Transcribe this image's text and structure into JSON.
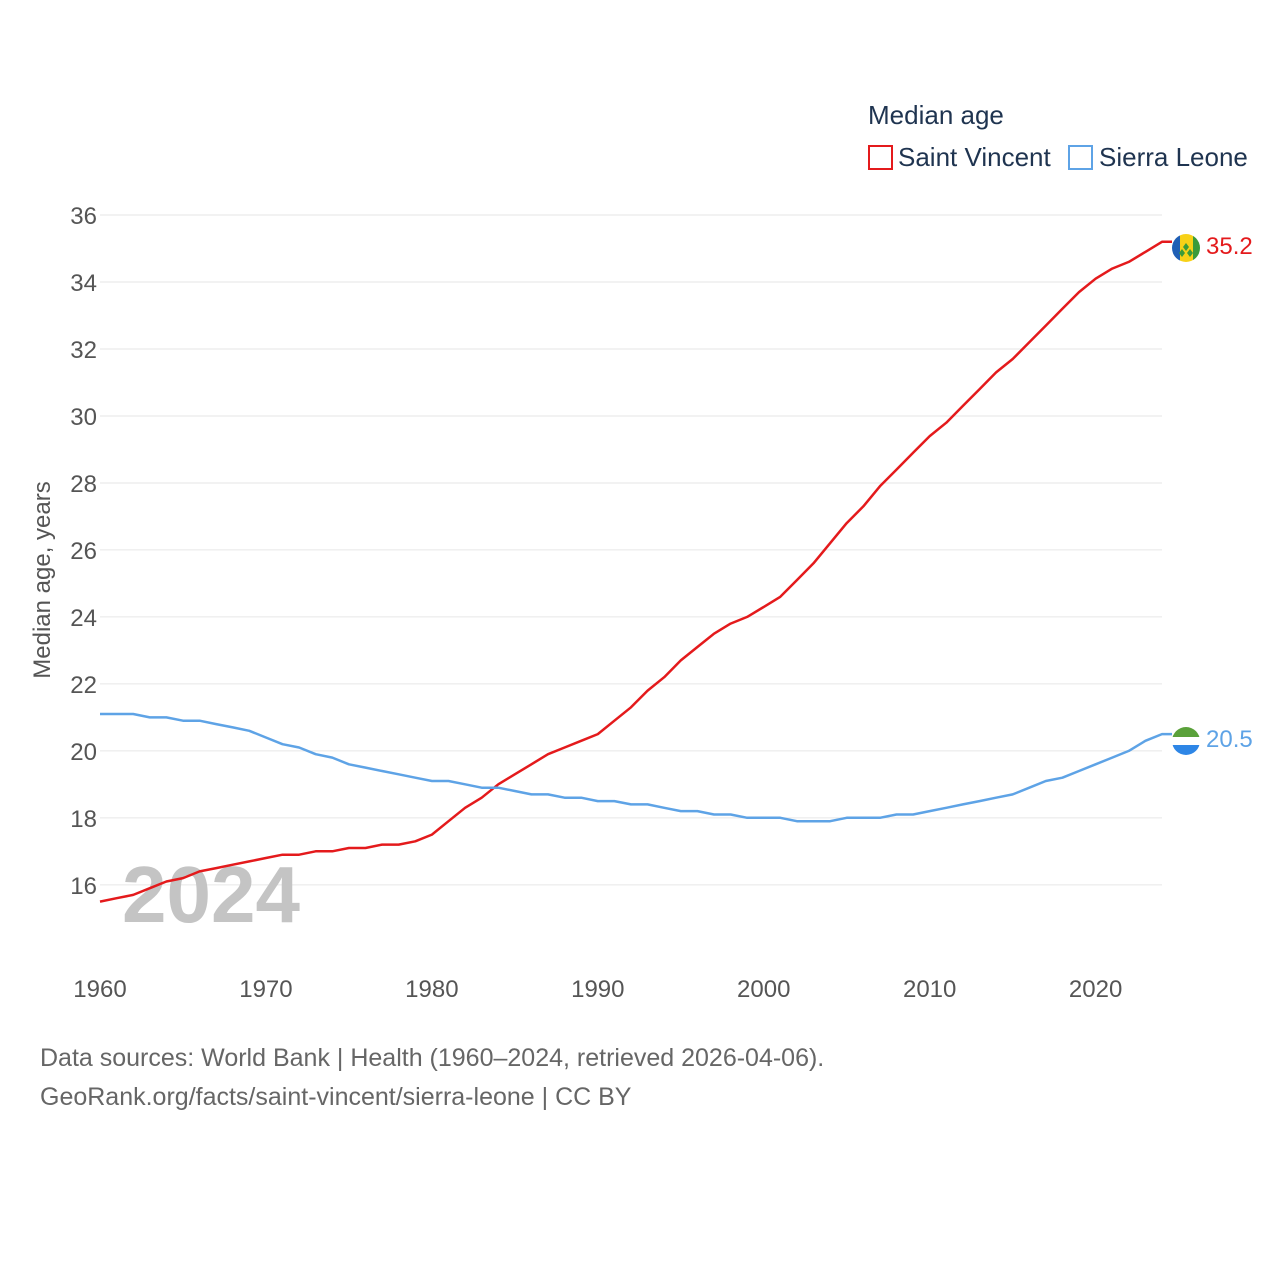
{
  "chart_data": {
    "type": "line",
    "legend_title": "Median age",
    "legend_position": "top-right",
    "ylabel": "Median age, years",
    "xlabel": "",
    "ylim": [
      14.8,
      36.3
    ],
    "xlim": [
      1960,
      2024
    ],
    "yticks": [
      16,
      18,
      20,
      22,
      24,
      26,
      28,
      30,
      32,
      34,
      36
    ],
    "xticks": [
      1960,
      1970,
      1980,
      1990,
      2000,
      2010,
      2020
    ],
    "year_label": "2024",
    "grid": true,
    "series": [
      {
        "name": "Saint Vincent",
        "color": "#e41a1c",
        "end_label": "35.2",
        "flag_icon": "saint-vincent-flag-icon",
        "x": [
          1960,
          1961,
          1962,
          1963,
          1964,
          1965,
          1966,
          1967,
          1968,
          1969,
          1970,
          1971,
          1972,
          1973,
          1974,
          1975,
          1976,
          1977,
          1978,
          1979,
          1980,
          1981,
          1982,
          1983,
          1984,
          1985,
          1986,
          1987,
          1988,
          1989,
          1990,
          1991,
          1992,
          1993,
          1994,
          1995,
          1996,
          1997,
          1998,
          1999,
          2000,
          2001,
          2002,
          2003,
          2004,
          2005,
          2006,
          2007,
          2008,
          2009,
          2010,
          2011,
          2012,
          2013,
          2014,
          2015,
          2016,
          2017,
          2018,
          2019,
          2020,
          2021,
          2022,
          2023,
          2024
        ],
        "values": [
          15.5,
          15.6,
          15.7,
          15.9,
          16.1,
          16.2,
          16.4,
          16.5,
          16.6,
          16.7,
          16.8,
          16.9,
          16.9,
          17.0,
          17.0,
          17.1,
          17.1,
          17.2,
          17.2,
          17.3,
          17.5,
          17.9,
          18.3,
          18.6,
          19.0,
          19.3,
          19.6,
          19.9,
          20.1,
          20.3,
          20.5,
          20.9,
          21.3,
          21.8,
          22.2,
          22.7,
          23.1,
          23.5,
          23.8,
          24.0,
          24.3,
          24.6,
          25.1,
          25.6,
          26.2,
          26.8,
          27.3,
          27.9,
          28.4,
          28.9,
          29.4,
          29.8,
          30.3,
          30.8,
          31.3,
          31.7,
          32.2,
          32.7,
          33.2,
          33.7,
          34.1,
          34.4,
          34.6,
          34.9,
          35.2
        ]
      },
      {
        "name": "Sierra Leone",
        "color": "#5ea3e6",
        "end_label": "20.5",
        "flag_icon": "sierra-leone-flag-icon",
        "x": [
          1960,
          1961,
          1962,
          1963,
          1964,
          1965,
          1966,
          1967,
          1968,
          1969,
          1970,
          1971,
          1972,
          1973,
          1974,
          1975,
          1976,
          1977,
          1978,
          1979,
          1980,
          1981,
          1982,
          1983,
          1984,
          1985,
          1986,
          1987,
          1988,
          1989,
          1990,
          1991,
          1992,
          1993,
          1994,
          1995,
          1996,
          1997,
          1998,
          1999,
          2000,
          2001,
          2002,
          2003,
          2004,
          2005,
          2006,
          2007,
          2008,
          2009,
          2010,
          2011,
          2012,
          2013,
          2014,
          2015,
          2016,
          2017,
          2018,
          2019,
          2020,
          2021,
          2022,
          2023,
          2024
        ],
        "values": [
          21.1,
          21.1,
          21.1,
          21.0,
          21.0,
          20.9,
          20.9,
          20.8,
          20.7,
          20.6,
          20.4,
          20.2,
          20.1,
          19.9,
          19.8,
          19.6,
          19.5,
          19.4,
          19.3,
          19.2,
          19.1,
          19.1,
          19.0,
          18.9,
          18.9,
          18.8,
          18.7,
          18.7,
          18.6,
          18.6,
          18.5,
          18.5,
          18.4,
          18.4,
          18.3,
          18.2,
          18.2,
          18.1,
          18.1,
          18.0,
          18.0,
          18.0,
          17.9,
          17.9,
          17.9,
          18.0,
          18.0,
          18.0,
          18.1,
          18.1,
          18.2,
          18.3,
          18.4,
          18.5,
          18.6,
          18.7,
          18.9,
          19.1,
          19.2,
          19.4,
          19.6,
          19.8,
          20.0,
          20.3,
          20.5
        ]
      }
    ]
  },
  "footer": {
    "line1": "Data sources: World Bank | Health (1960–2024, retrieved 2026-04-06).",
    "line2": "GeoRank.org/facts/saint-vincent/sierra-leone | CC BY"
  }
}
